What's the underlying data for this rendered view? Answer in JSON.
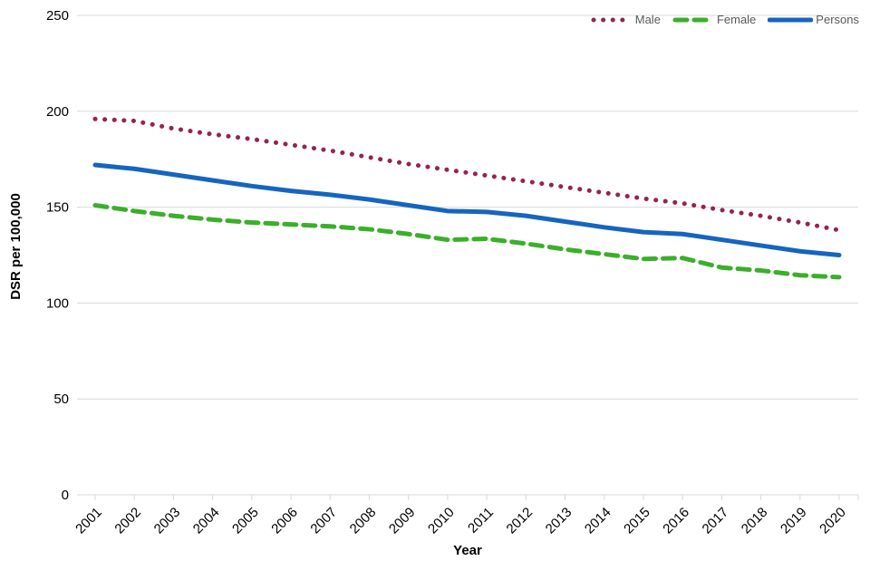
{
  "chart_data": {
    "type": "line",
    "title": "",
    "xlabel": "Year",
    "ylabel": "DSR per 100,000",
    "ylim": [
      0,
      250
    ],
    "yticks": [
      0,
      50,
      100,
      150,
      200,
      250
    ],
    "grid": "horizontal",
    "legend_position": "top-right",
    "x": [
      2001,
      2002,
      2003,
      2004,
      2005,
      2006,
      2007,
      2008,
      2009,
      2010,
      2011,
      2012,
      2013,
      2014,
      2015,
      2016,
      2017,
      2018,
      2019,
      2020
    ],
    "series": [
      {
        "name": "Male",
        "color": "#962350",
        "style": "dotted",
        "values": [
          196,
          195,
          191,
          188,
          185.5,
          182.5,
          179.5,
          176,
          172.5,
          169.5,
          166.5,
          163.5,
          160.5,
          157.5,
          154.5,
          152,
          148.5,
          145.5,
          142,
          138
        ]
      },
      {
        "name": "Female",
        "color": "#3BAF2A",
        "style": "dashed",
        "values": [
          151,
          148,
          145.5,
          143.5,
          142,
          141,
          140,
          138.5,
          136,
          133,
          133.5,
          131,
          128,
          125.5,
          123,
          123.5,
          118.5,
          117,
          114.5,
          113.5
        ]
      },
      {
        "name": "Persons",
        "color": "#1565C0",
        "style": "solid",
        "values": [
          172,
          170,
          167,
          164,
          161,
          158.5,
          156.5,
          154,
          151,
          148,
          147.5,
          145.5,
          142.5,
          139.5,
          137,
          136,
          133,
          130,
          127,
          125
        ]
      }
    ],
    "colors": {
      "gridline": "#D9D9D9",
      "axis_text": "#000000",
      "legend_text": "#595959"
    }
  }
}
